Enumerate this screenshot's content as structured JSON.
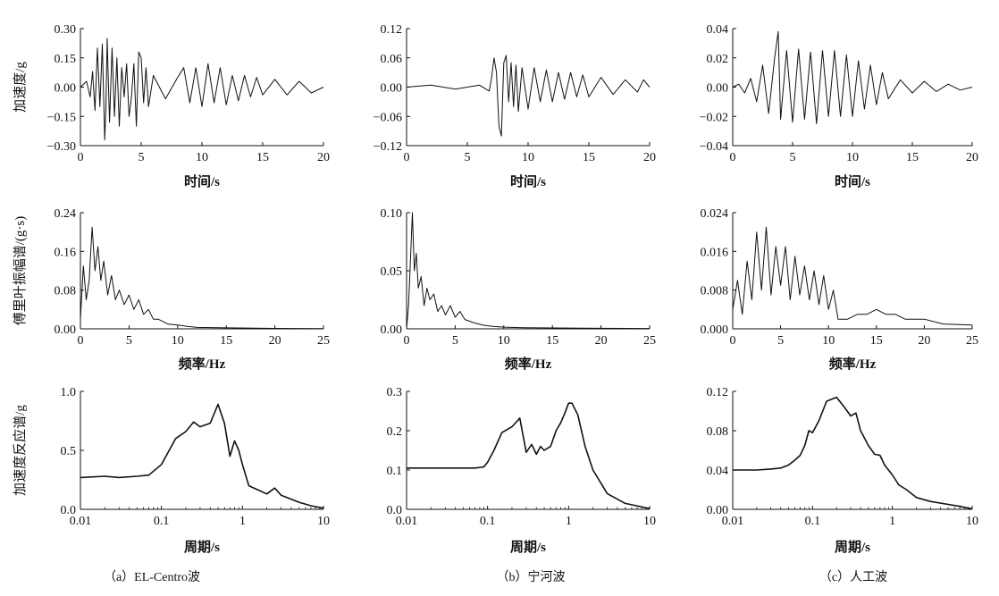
{
  "panel_captions": [
    "（a）EL-Centro波",
    "（b）宁河波",
    "（c）人工波"
  ],
  "chart_data": [
    {
      "id": "a-acc",
      "type": "line",
      "xlabel": "时间/s",
      "ylabel": "加速度/g",
      "xlim": [
        0,
        20
      ],
      "ylim": [
        -0.3,
        0.3
      ],
      "xticks": [
        0,
        5,
        10,
        15,
        20
      ],
      "yticks": [
        -0.3,
        -0.15,
        0.0,
        0.15,
        0.3
      ],
      "ytick_labels": [
        "−0.30",
        "−0.15",
        "0.00",
        "0.15",
        "0.30"
      ],
      "series": [
        {
          "x": [
            0,
            0.5,
            0.8,
            1.0,
            1.2,
            1.4,
            1.6,
            1.8,
            2.0,
            2.1,
            2.2,
            2.4,
            2.6,
            2.8,
            3.0,
            3.2,
            3.4,
            3.6,
            3.8,
            4.0,
            4.2,
            4.4,
            4.6,
            4.8,
            5.0,
            5.2,
            5.4,
            5.6,
            6,
            7,
            8,
            8.5,
            9,
            9.5,
            10,
            10.5,
            11,
            11.5,
            12,
            12.5,
            13,
            13.5,
            14,
            14.5,
            15,
            16,
            17,
            18,
            19,
            20
          ],
          "y": [
            0,
            0.03,
            -0.05,
            0.08,
            -0.12,
            0.2,
            -0.1,
            0.22,
            -0.27,
            -0.1,
            0.25,
            -0.18,
            0.2,
            -0.15,
            0.15,
            -0.2,
            0.1,
            -0.05,
            0.12,
            -0.15,
            -0.05,
            0.12,
            -0.2,
            0.18,
            0.15,
            -0.08,
            0.1,
            -0.1,
            0.06,
            -0.06,
            0.05,
            0.1,
            -0.08,
            0.1,
            -0.1,
            0.12,
            -0.08,
            0.1,
            -0.09,
            0.06,
            -0.07,
            0.06,
            -0.05,
            0.05,
            -0.04,
            0.04,
            -0.04,
            0.03,
            -0.03,
            0.0
          ]
        }
      ]
    },
    {
      "id": "b-acc",
      "type": "line",
      "xlabel": "时间/s",
      "xlim": [
        0,
        20
      ],
      "ylim": [
        -0.12,
        0.12
      ],
      "xticks": [
        0,
        5,
        10,
        15,
        20
      ],
      "yticks": [
        -0.12,
        -0.06,
        0.0,
        0.06,
        0.12
      ],
      "ytick_labels": [
        "−0.12",
        "−0.06",
        "0.00",
        "0.06",
        "0.12"
      ],
      "series": [
        {
          "x": [
            0,
            2,
            4,
            6,
            6.8,
            7.0,
            7.2,
            7.4,
            7.6,
            7.8,
            8.0,
            8.2,
            8.4,
            8.6,
            8.8,
            9.0,
            9.2,
            9.5,
            10,
            10.5,
            11,
            11.5,
            12,
            12.5,
            13,
            13.5,
            14,
            14.5,
            15,
            16,
            17,
            18,
            19,
            19.5,
            20
          ],
          "y": [
            0,
            0.004,
            -0.004,
            0.004,
            -0.008,
            0.02,
            0.06,
            0.03,
            -0.08,
            -0.1,
            0.05,
            0.065,
            -0.03,
            0.05,
            -0.04,
            0.045,
            -0.05,
            0.04,
            -0.045,
            0.04,
            -0.03,
            0.035,
            -0.03,
            0.03,
            -0.025,
            0.03,
            -0.02,
            0.025,
            -0.02,
            0.02,
            -0.015,
            0.015,
            -0.01,
            0.015,
            0.0
          ]
        }
      ]
    },
    {
      "id": "c-acc",
      "type": "line",
      "xlabel": "时间/s",
      "xlim": [
        0,
        20
      ],
      "ylim": [
        -0.04,
        0.04
      ],
      "xticks": [
        0,
        5,
        10,
        15,
        20
      ],
      "yticks": [
        -0.04,
        -0.02,
        0.0,
        0.02,
        0.04
      ],
      "ytick_labels": [
        "−0.04",
        "−0.02",
        "0.00",
        "0.02",
        "0.04"
      ],
      "series": [
        {
          "x": [
            0,
            0.5,
            1,
            1.5,
            2,
            2.5,
            3,
            3.5,
            3.8,
            4,
            4.5,
            5,
            5.5,
            6,
            6.5,
            7,
            7.5,
            8,
            8.5,
            9,
            9.5,
            10,
            10.5,
            11,
            11.5,
            12,
            12.5,
            13,
            14,
            15,
            16,
            17,
            18,
            19,
            20
          ],
          "y": [
            0,
            0.002,
            -0.004,
            0.006,
            -0.01,
            0.015,
            -0.018,
            0.02,
            0.038,
            -0.022,
            0.025,
            -0.024,
            0.026,
            -0.022,
            0.024,
            -0.025,
            0.025,
            -0.02,
            0.025,
            -0.02,
            0.022,
            -0.02,
            0.018,
            -0.015,
            0.015,
            -0.012,
            0.01,
            -0.008,
            0.005,
            -0.004,
            0.004,
            -0.003,
            0.002,
            -0.002,
            0.0
          ]
        }
      ]
    },
    {
      "id": "a-fas",
      "type": "line",
      "xlabel": "频率/Hz",
      "ylabel": "傅里叶振幅谱/(g·s)",
      "xlim": [
        0,
        25
      ],
      "ylim": [
        0,
        0.24
      ],
      "xticks": [
        0,
        5,
        10,
        15,
        20,
        25
      ],
      "yticks": [
        0.0,
        0.08,
        0.16,
        0.24
      ],
      "ytick_labels": [
        "0.00",
        "0.08",
        "0.16",
        "0.24"
      ],
      "series": [
        {
          "x": [
            0,
            0.3,
            0.6,
            0.9,
            1.2,
            1.5,
            1.8,
            2.1,
            2.4,
            2.8,
            3.2,
            3.6,
            4,
            4.5,
            5,
            5.5,
            6,
            6.5,
            7,
            7.5,
            8,
            9,
            10,
            11,
            12,
            15,
            20,
            25
          ],
          "y": [
            0.02,
            0.13,
            0.06,
            0.1,
            0.21,
            0.12,
            0.17,
            0.1,
            0.14,
            0.07,
            0.11,
            0.06,
            0.08,
            0.05,
            0.07,
            0.04,
            0.06,
            0.03,
            0.04,
            0.02,
            0.02,
            0.01,
            0.008,
            0.005,
            0.003,
            0.002,
            0.001,
            0.0005
          ]
        }
      ]
    },
    {
      "id": "b-fas",
      "type": "line",
      "xlabel": "频率/Hz",
      "xlim": [
        0,
        25
      ],
      "ylim": [
        0,
        0.1
      ],
      "xticks": [
        0,
        5,
        10,
        15,
        20,
        25
      ],
      "yticks": [
        0.0,
        0.05,
        0.1
      ],
      "ytick_labels": [
        "0.00",
        "0.05",
        "0.10"
      ],
      "series": [
        {
          "x": [
            0,
            0.2,
            0.4,
            0.6,
            0.8,
            1.0,
            1.2,
            1.5,
            1.8,
            2.1,
            2.4,
            2.8,
            3.2,
            3.6,
            4,
            4.5,
            5,
            5.5,
            6,
            7,
            8,
            9,
            10,
            12,
            15,
            20,
            25
          ],
          "y": [
            0.0,
            0.02,
            0.06,
            0.1,
            0.05,
            0.065,
            0.035,
            0.045,
            0.02,
            0.035,
            0.025,
            0.03,
            0.015,
            0.02,
            0.012,
            0.02,
            0.01,
            0.015,
            0.008,
            0.005,
            0.003,
            0.002,
            0.0015,
            0.001,
            0.0008,
            0.0005,
            0.0003
          ]
        }
      ]
    },
    {
      "id": "c-fas",
      "type": "line",
      "xlabel": "频率/Hz",
      "xlim": [
        0,
        25
      ],
      "ylim": [
        0,
        0.024
      ],
      "xticks": [
        0,
        5,
        10,
        15,
        20,
        25
      ],
      "yticks": [
        0.0,
        0.008,
        0.016,
        0.024
      ],
      "ytick_labels": [
        "0.000",
        "0.008",
        "0.016",
        "0.024"
      ],
      "series": [
        {
          "x": [
            0,
            0.5,
            1,
            1.5,
            2,
            2.5,
            3,
            3.5,
            4,
            4.5,
            5,
            5.5,
            6,
            6.5,
            7,
            7.5,
            8,
            8.5,
            9,
            9.5,
            10,
            10.5,
            11,
            12,
            13,
            14,
            15,
            16,
            17,
            18,
            20,
            22,
            25
          ],
          "y": [
            0.004,
            0.01,
            0.003,
            0.014,
            0.006,
            0.02,
            0.008,
            0.021,
            0.007,
            0.017,
            0.009,
            0.017,
            0.006,
            0.015,
            0.007,
            0.013,
            0.006,
            0.012,
            0.005,
            0.011,
            0.004,
            0.008,
            0.002,
            0.002,
            0.003,
            0.003,
            0.004,
            0.003,
            0.003,
            0.002,
            0.002,
            0.001,
            0.0008
          ]
        }
      ]
    },
    {
      "id": "a-rsa",
      "type": "line",
      "xlabel": "周期/s",
      "ylabel": "加速度反应谱/g",
      "xscale": "log",
      "xlim": [
        0.01,
        10
      ],
      "ylim": [
        0,
        1.0
      ],
      "xticks": [
        0.01,
        0.1,
        1,
        10
      ],
      "xtick_labels": [
        "0.01",
        "0.1",
        "1",
        "10"
      ],
      "yticks": [
        0.0,
        0.5,
        1.0
      ],
      "ytick_labels": [
        "0.0",
        "0.5",
        "1.0"
      ],
      "series": [
        {
          "x": [
            0.01,
            0.02,
            0.03,
            0.05,
            0.07,
            0.1,
            0.15,
            0.2,
            0.25,
            0.3,
            0.4,
            0.5,
            0.6,
            0.7,
            0.8,
            0.9,
            1.0,
            1.2,
            1.5,
            2.0,
            2.5,
            3,
            5,
            7,
            10
          ],
          "y": [
            0.27,
            0.28,
            0.27,
            0.28,
            0.29,
            0.38,
            0.6,
            0.66,
            0.74,
            0.7,
            0.73,
            0.89,
            0.73,
            0.45,
            0.58,
            0.5,
            0.38,
            0.2,
            0.17,
            0.13,
            0.18,
            0.12,
            0.06,
            0.03,
            0.01
          ]
        }
      ]
    },
    {
      "id": "b-rsa",
      "type": "line",
      "xlabel": "周期/s",
      "xscale": "log",
      "xlim": [
        0.01,
        10
      ],
      "ylim": [
        0,
        0.3
      ],
      "xticks": [
        0.01,
        0.1,
        1,
        10
      ],
      "xtick_labels": [
        "0.01",
        "0.1",
        "1",
        "10"
      ],
      "yticks": [
        0.0,
        0.1,
        0.2,
        0.3
      ],
      "ytick_labels": [
        "0.0",
        "0.1",
        "0.2",
        "0.3"
      ],
      "series": [
        {
          "x": [
            0.01,
            0.02,
            0.03,
            0.05,
            0.07,
            0.09,
            0.1,
            0.12,
            0.15,
            0.2,
            0.25,
            0.3,
            0.35,
            0.4,
            0.45,
            0.5,
            0.6,
            0.7,
            0.8,
            0.9,
            1.0,
            1.1,
            1.3,
            1.6,
            2.0,
            3,
            5,
            10
          ],
          "y": [
            0.105,
            0.105,
            0.105,
            0.105,
            0.105,
            0.108,
            0.12,
            0.15,
            0.195,
            0.21,
            0.232,
            0.145,
            0.165,
            0.14,
            0.16,
            0.15,
            0.16,
            0.2,
            0.22,
            0.245,
            0.27,
            0.27,
            0.24,
            0.16,
            0.1,
            0.04,
            0.015,
            0.002
          ]
        }
      ]
    },
    {
      "id": "c-rsa",
      "type": "line",
      "xlabel": "周期/s",
      "xscale": "log",
      "xlim": [
        0.01,
        10
      ],
      "ylim": [
        0,
        0.12
      ],
      "xticks": [
        0.01,
        0.1,
        1,
        10
      ],
      "xtick_labels": [
        "0.01",
        "0.1",
        "1",
        "10"
      ],
      "yticks": [
        0.0,
        0.04,
        0.08,
        0.12
      ],
      "ytick_labels": [
        "0.00",
        "0.04",
        "0.08",
        "0.12"
      ],
      "series": [
        {
          "x": [
            0.01,
            0.02,
            0.03,
            0.04,
            0.05,
            0.06,
            0.07,
            0.08,
            0.09,
            0.1,
            0.12,
            0.15,
            0.2,
            0.25,
            0.3,
            0.35,
            0.4,
            0.5,
            0.6,
            0.7,
            0.8,
            1.0,
            1.2,
            1.5,
            2,
            3,
            5,
            7,
            10
          ],
          "y": [
            0.04,
            0.04,
            0.041,
            0.042,
            0.045,
            0.05,
            0.055,
            0.065,
            0.08,
            0.078,
            0.09,
            0.11,
            0.114,
            0.104,
            0.095,
            0.098,
            0.08,
            0.065,
            0.056,
            0.055,
            0.045,
            0.035,
            0.025,
            0.02,
            0.012,
            0.008,
            0.005,
            0.003,
            0.0005
          ]
        }
      ]
    }
  ]
}
